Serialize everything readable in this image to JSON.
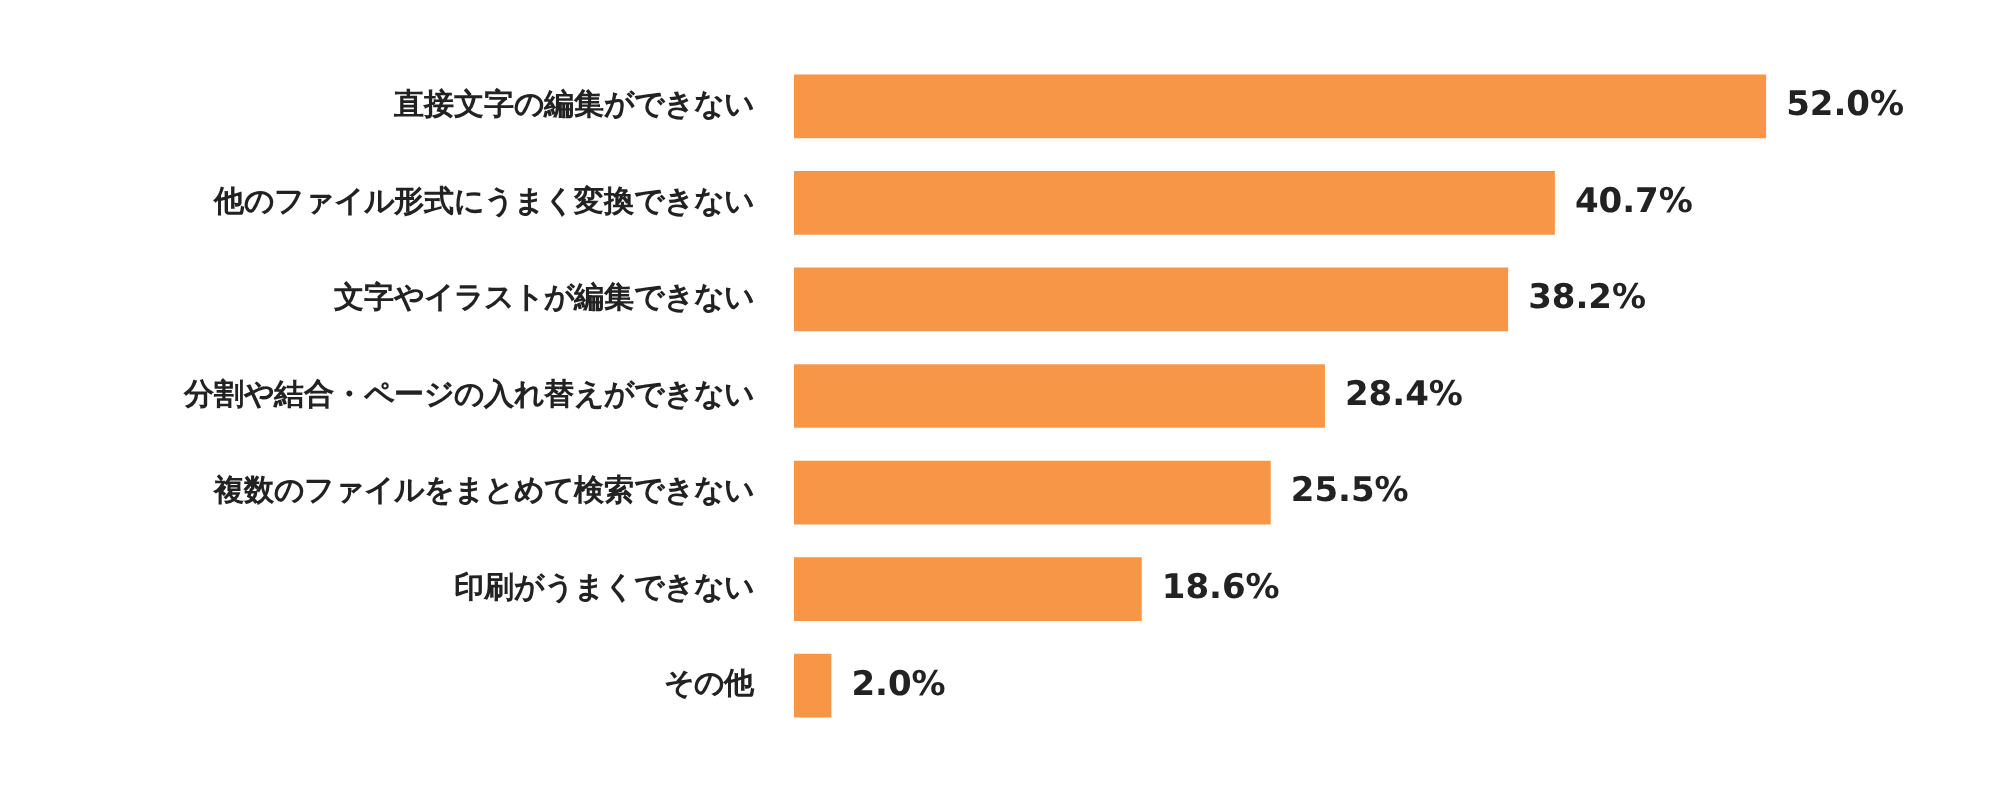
{
  "chart_data": {
    "type": "bar",
    "orientation": "horizontal",
    "categories": [
      "直接文字の編集ができない",
      "他のファイル形式にうまく変換できない",
      "文字やイラストが編集できない",
      "分割や結合・ページの入れ替えができない",
      "複数のファイルをまとめて検索できない",
      "印刷がうまくできない",
      "その他"
    ],
    "values": [
      52.0,
      40.7,
      38.2,
      28.4,
      25.5,
      18.6,
      2.0
    ],
    "value_labels": [
      "52.0%",
      "40.7%",
      "38.2%",
      "28.4%",
      "25.5%",
      "18.6%",
      "2.0%"
    ],
    "color": "#f79646",
    "legend": false
  }
}
